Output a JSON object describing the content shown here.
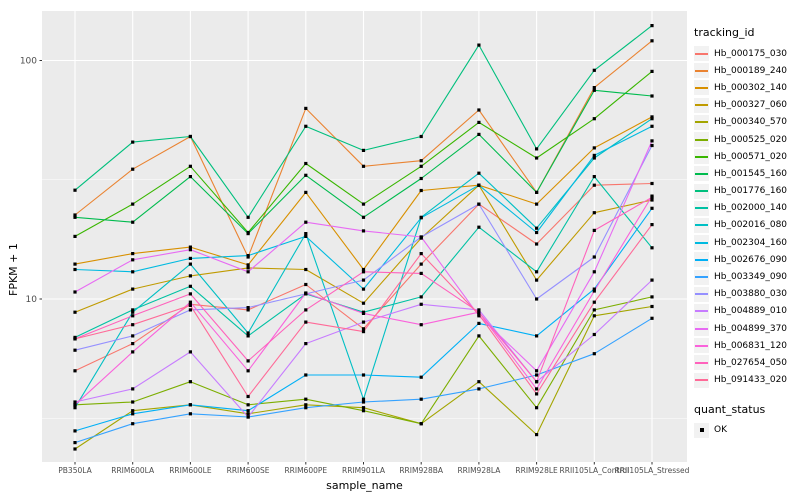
{
  "chart_data": {
    "type": "line",
    "title": "",
    "xlabel": "sample_name",
    "ylabel": "FPKM + 1",
    "x_categories": [
      "PB350LA",
      "RRIM600LA",
      "RRIM600LE",
      "RRIM600SE",
      "RRIM600PE",
      "RRIM901LA",
      "RRIM928BA",
      "RRIM928LA",
      "RRIM928LE",
      "RRII105LA_Control",
      "RRII105LA_Stressed"
    ],
    "y_axis": {
      "scale": "log10",
      "ticks": [
        10,
        100
      ],
      "tick_labels": [
        "10",
        "100"
      ],
      "minor_ticks": [
        3.162,
        31.62
      ],
      "range": [
        2.0,
        161
      ]
    },
    "grid": true,
    "legend_position": "right",
    "panel_color": "#EBEBEB",
    "grid_color": "#FFFFFF",
    "tick_label_color": "#4D4D4D",
    "point_marker": "black-square",
    "point_color": "#000000",
    "series": [
      {
        "name": "Hb_000175_030",
        "color": "#F8766D",
        "values": [
          5.0,
          6.5,
          9.5,
          9.0,
          11.5,
          7.5,
          14.0,
          25.0,
          17.0,
          30.0,
          30.5
        ]
      },
      {
        "name": "Hb_000189_240",
        "color": "#EA8331",
        "values": [
          22.5,
          35,
          48,
          15,
          63,
          36,
          38,
          62,
          28,
          77,
          121
        ]
      },
      {
        "name": "Hb_000302_140",
        "color": "#D89000",
        "values": [
          14.0,
          15.5,
          16.5,
          13.9,
          28.0,
          13.3,
          28.5,
          30.0,
          25.0,
          43.0,
          58.0
        ]
      },
      {
        "name": "Hb_000327_060",
        "color": "#C09B00",
        "values": [
          8.8,
          11.0,
          12.5,
          13.5,
          13.3,
          9.6,
          18.0,
          30.0,
          12.0,
          23.0,
          26.0
        ]
      },
      {
        "name": "Hb_000340_570",
        "color": "#A3A500",
        "values": [
          2.35,
          3.4,
          3.6,
          3.3,
          3.6,
          3.5,
          3.0,
          4.5,
          2.7,
          8.5,
          9.3
        ]
      },
      {
        "name": "Hb_000525_020",
        "color": "#7CAE00",
        "values": [
          3.6,
          3.7,
          4.5,
          3.6,
          3.8,
          3.4,
          3.0,
          7.0,
          3.5,
          9.0,
          10.2
        ]
      },
      {
        "name": "Hb_000571_020",
        "color": "#39B600",
        "values": [
          18.3,
          25.0,
          36.0,
          19.0,
          37.0,
          25.0,
          36.0,
          55.0,
          39.0,
          57.0,
          90.0
        ]
      },
      {
        "name": "Hb_001545_160",
        "color": "#00BB4E",
        "values": [
          22.0,
          21.0,
          32.6,
          18.8,
          33.0,
          22.0,
          32.0,
          49.0,
          28.0,
          75.0,
          71.0
        ]
      },
      {
        "name": "Hb_001776_160",
        "color": "#00BF7D",
        "values": [
          28.6,
          45.5,
          48.0,
          22.0,
          53.0,
          42.0,
          48.0,
          116.0,
          42.6,
          91.0,
          140.0
        ]
      },
      {
        "name": "Hb_002000_140",
        "color": "#00C1A3",
        "values": [
          6.9,
          9.0,
          11.3,
          7.0,
          10.5,
          8.8,
          10.2,
          20.0,
          13.0,
          32.6,
          16.4
        ]
      },
      {
        "name": "Hb_002016_080",
        "color": "#00BFC4",
        "values": [
          3.5,
          8.8,
          14.0,
          7.2,
          18.8,
          3.8,
          22.0,
          33.7,
          19.8,
          39.0,
          57.0
        ]
      },
      {
        "name": "Hb_002304_160",
        "color": "#00BAE0",
        "values": [
          13.3,
          13.0,
          14.8,
          15.2,
          18.3,
          11.0,
          21.9,
          30.0,
          19.0,
          40.0,
          53.0
        ]
      },
      {
        "name": "Hb_002676_090",
        "color": "#00B0F6",
        "values": [
          2.8,
          3.3,
          3.6,
          3.4,
          4.8,
          4.8,
          4.7,
          7.9,
          7.0,
          11.0,
          24.0
        ]
      },
      {
        "name": "Hb_003349_090",
        "color": "#35A2FF",
        "values": [
          2.5,
          3.0,
          3.3,
          3.2,
          3.5,
          3.7,
          3.8,
          4.2,
          4.8,
          5.9,
          8.3
        ]
      },
      {
        "name": "Hb_003880_030",
        "color": "#9590FF",
        "values": [
          6.1,
          7.0,
          9.0,
          9.2,
          10.5,
          12.0,
          18.2,
          25.0,
          10.0,
          15.0,
          44.0
        ]
      },
      {
        "name": "Hb_004889_010",
        "color": "#C77CFF",
        "values": [
          3.7,
          4.2,
          6.0,
          3.2,
          6.5,
          8.0,
          9.5,
          9.0,
          4.5,
          7.1,
          12.0
        ]
      },
      {
        "name": "Hb_004899_370",
        "color": "#E76BF3",
        "values": [
          10.7,
          14.6,
          16.1,
          13.0,
          21.0,
          19.3,
          18.2,
          8.5,
          5.0,
          13.0,
          46.0
        ]
      },
      {
        "name": "Hb_006831_120",
        "color": "#FA62DB",
        "values": [
          3.6,
          6.0,
          9.7,
          5.0,
          10.6,
          8.7,
          7.8,
          8.8,
          4.2,
          10.8,
          27.0
        ]
      },
      {
        "name": "Hb_027654_050",
        "color": "#FF62BC",
        "values": [
          6.8,
          8.5,
          10.5,
          5.5,
          9.0,
          13.0,
          12.8,
          8.8,
          4.5,
          19.4,
          26.7
        ]
      },
      {
        "name": "Hb_091433_020",
        "color": "#FF6A98",
        "values": [
          6.8,
          7.8,
          9.4,
          3.9,
          8.0,
          7.3,
          15.5,
          8.6,
          4.0,
          9.7,
          20.5
        ]
      }
    ],
    "legend": {
      "tracking_title": "tracking_id",
      "quant_title": "quant_status",
      "quant_items": [
        {
          "label": "OK",
          "marker": "black-square"
        }
      ],
      "key_fill": "#F2F2F2"
    }
  }
}
